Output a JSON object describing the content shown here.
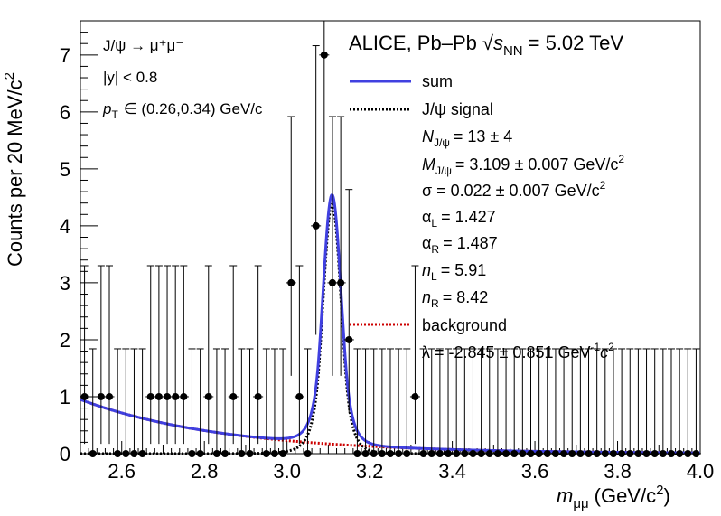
{
  "chart_data": {
    "type": "line",
    "title": "ALICE, Pb–Pb √s_NN = 5.02 TeV",
    "title_parts": {
      "experiment": "ALICE, Pb–Pb",
      "sqrt": "√",
      "s": "s",
      "sub": "NN",
      "energy": "= 5.02 TeV"
    },
    "xlabel": {
      "m": "m",
      "sub": "μμ",
      "unit": "(GeV/c",
      "sup": "2",
      "close": ")"
    },
    "ylabel": {
      "text": "Counts per 20 MeV/c",
      "sup": "2"
    },
    "xlim": [
      2.5,
      4.0
    ],
    "ylim": [
      0,
      7.6
    ],
    "x_ticks": [
      "2.6",
      "2.8",
      "3.0",
      "3.2",
      "3.4",
      "3.6",
      "3.8",
      "4.0"
    ],
    "y_ticks": [
      "0",
      "1",
      "2",
      "3",
      "4",
      "5",
      "6",
      "7"
    ],
    "annotations": {
      "decay": "J/ψ → μ⁺μ⁻",
      "rapidity": "|y| < 0.8",
      "pt_label": "p",
      "pt_sub": "T",
      "pt_range": "∈ (0.26,0.34) GeV/c"
    },
    "legend": {
      "sum": "sum",
      "signal": "J/ψ signal",
      "N_label": "N",
      "N_sub": "J/ψ",
      "N_value": "= 13 ± 4",
      "M_label": "M",
      "M_sub": "J/ψ",
      "M_value": "= 3.109 ± 0.007 GeV/c",
      "M_sup": "2",
      "sigma": "σ = 0.022 ± 0.007 GeV/c",
      "sigma_sup": "2",
      "alphaL_label": "α",
      "alphaL_sub": "L",
      "alphaL_value": "= 1.427",
      "alphaR_label": "α",
      "alphaR_sub": "R",
      "alphaR_value": "= 1.487",
      "nL_label": "n",
      "nL_sub": "L",
      "nL_value": "= 5.91",
      "nR_label": "n",
      "nR_sub": "R",
      "nR_value": "= 8.42",
      "background": "background",
      "lambda": "λ = -2.845 ± 0.851 GeV",
      "lambda_sup": "-1",
      "lambda_tail": "c",
      "lambda_sup2": "2"
    },
    "colors": {
      "sum": "#4040e0",
      "signal": "#000000",
      "background": "#cc0000",
      "data": "#000000"
    },
    "data_points": {
      "x": [
        2.51,
        2.53,
        2.55,
        2.57,
        2.59,
        2.61,
        2.63,
        2.65,
        2.67,
        2.69,
        2.71,
        2.73,
        2.75,
        2.77,
        2.79,
        2.81,
        2.83,
        2.85,
        2.87,
        2.89,
        2.91,
        2.93,
        2.95,
        2.97,
        2.99,
        3.01,
        3.03,
        3.05,
        3.07,
        3.09,
        3.11,
        3.13,
        3.15,
        3.17,
        3.19,
        3.21,
        3.23,
        3.25,
        3.27,
        3.29,
        3.31,
        3.33,
        3.35,
        3.37,
        3.39,
        3.41,
        3.43,
        3.45,
        3.47,
        3.49,
        3.51,
        3.53,
        3.55,
        3.57,
        3.59,
        3.61,
        3.63,
        3.65,
        3.67,
        3.69,
        3.71,
        3.73,
        3.75,
        3.77,
        3.79,
        3.81,
        3.83,
        3.85,
        3.87,
        3.89,
        3.91,
        3.93,
        3.95,
        3.97,
        3.99
      ],
      "y": [
        1,
        0,
        1,
        1,
        0,
        0,
        0,
        0,
        1,
        1,
        1,
        1,
        1,
        0,
        0,
        1,
        0,
        0,
        1,
        0,
        0,
        1,
        0,
        0,
        0,
        3,
        1,
        0,
        4,
        7,
        3,
        3,
        2,
        0,
        0,
        0,
        0,
        0,
        0,
        0,
        1,
        0,
        0,
        0,
        0,
        0,
        0,
        0,
        0,
        0,
        0,
        0,
        0,
        0,
        0,
        0,
        0,
        0,
        0,
        0,
        0,
        0,
        0,
        0,
        0,
        0,
        0,
        0,
        0,
        0,
        0,
        0,
        0,
        0,
        0
      ]
    },
    "fit": {
      "N": 13,
      "mean": 3.109,
      "sigma": 0.022,
      "alphaL": 1.427,
      "alphaR": 1.487,
      "nL": 5.91,
      "nR": 8.42,
      "lambda": -2.845,
      "bkg_at_xmin": 0.95
    }
  }
}
